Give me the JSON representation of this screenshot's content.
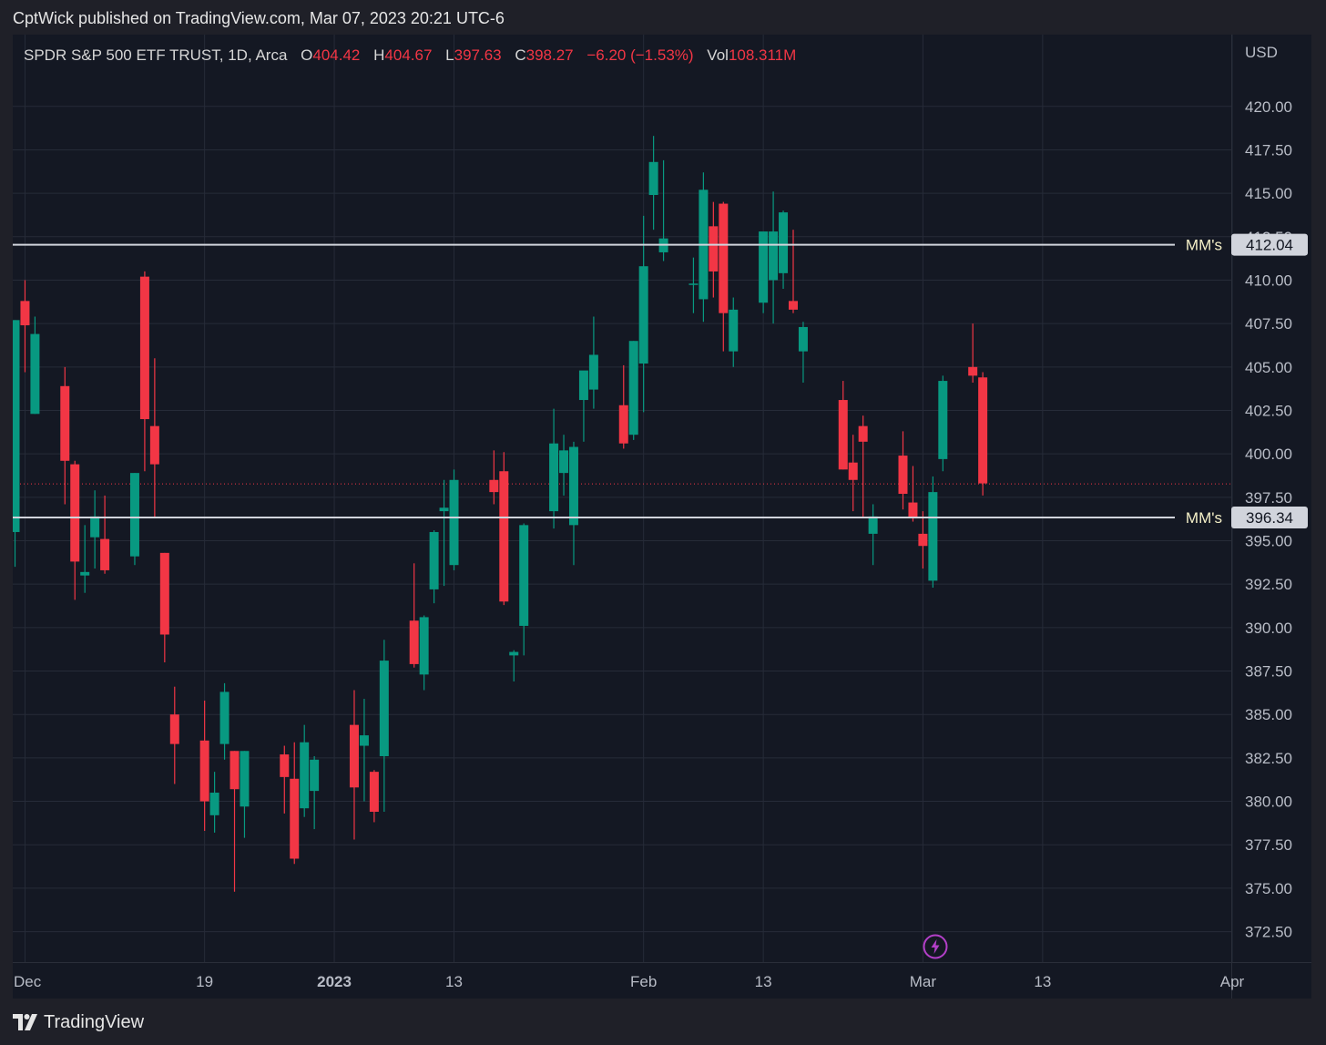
{
  "header": {
    "publisher_text": "CptWick published on TradingView.com, Mar 07, 2023 20:21 UTC-6"
  },
  "legend": {
    "symbol": "SPDR S&P 500 ETF TRUST, 1D, Arca",
    "open_label": "O",
    "open": "404.42",
    "high_label": "H",
    "high": "404.67",
    "low_label": "L",
    "low": "397.63",
    "close_label": "C",
    "close": "398.27",
    "change": "−6.20 (−1.53%)",
    "vol_label": "Vol",
    "vol": "108.311M"
  },
  "footer": {
    "brand": "TradingView"
  },
  "colors": {
    "up": "#089981",
    "down": "#f23645",
    "grid": "#262b38",
    "axis_text": "#b8bcc6",
    "level_line": "#d1d4dc",
    "price_line": "#f23645"
  },
  "chart_data": {
    "type": "candlestick",
    "currency": "USD",
    "ylim": [
      370.8,
      422.4
    ],
    "y_ticks": [
      420.0,
      417.5,
      415.0,
      412.5,
      410.0,
      407.5,
      405.0,
      402.5,
      400.0,
      397.5,
      395.0,
      392.5,
      390.0,
      387.5,
      385.0,
      382.5,
      380.0,
      377.5,
      375.0,
      372.5
    ],
    "x_labels": [
      {
        "label": "Dec",
        "bold": false
      },
      {
        "label": "19",
        "bold": false
      },
      {
        "label": "2023",
        "bold": true
      },
      {
        "label": "13",
        "bold": false
      },
      {
        "label": "Feb",
        "bold": false
      },
      {
        "label": "13",
        "bold": false
      },
      {
        "label": "Mar",
        "bold": false
      },
      {
        "label": "13",
        "bold": false
      },
      {
        "label": "Apr",
        "bold": false
      }
    ],
    "candles": [
      {
        "d": "2022-11-30",
        "o": 395.5,
        "h": 407.7,
        "l": 393.5,
        "c": 407.7
      },
      {
        "d": "2022-12-01",
        "o": 408.8,
        "h": 410.0,
        "l": 404.7,
        "c": 407.4
      },
      {
        "d": "2022-12-02",
        "o": 402.3,
        "h": 407.9,
        "l": 402.3,
        "c": 406.9
      },
      {
        "d": "2022-12-05",
        "o": 403.9,
        "h": 405.0,
        "l": 397.1,
        "c": 399.6
      },
      {
        "d": "2022-12-06",
        "o": 399.4,
        "h": 399.6,
        "l": 391.6,
        "c": 393.8
      },
      {
        "d": "2022-12-07",
        "o": 393.0,
        "h": 395.9,
        "l": 392.0,
        "c": 393.2
      },
      {
        "d": "2022-12-08",
        "o": 395.2,
        "h": 397.9,
        "l": 393.4,
        "c": 396.4
      },
      {
        "d": "2022-12-09",
        "o": 395.1,
        "h": 397.6,
        "l": 393.1,
        "c": 393.3
      },
      {
        "d": "2022-12-12",
        "o": 394.1,
        "h": 398.9,
        "l": 393.6,
        "c": 398.9
      },
      {
        "d": "2022-12-13",
        "o": 410.2,
        "h": 410.5,
        "l": 399.0,
        "c": 402.0
      },
      {
        "d": "2022-12-14",
        "o": 401.6,
        "h": 405.5,
        "l": 396.3,
        "c": 399.4
      },
      {
        "d": "2022-12-15",
        "o": 394.3,
        "h": 394.3,
        "l": 388.0,
        "c": 389.6
      },
      {
        "d": "2022-12-16",
        "o": 385.0,
        "h": 386.6,
        "l": 381.0,
        "c": 383.3
      },
      {
        "d": "2022-12-19",
        "o": 383.5,
        "h": 385.8,
        "l": 378.3,
        "c": 380.0
      },
      {
        "d": "2022-12-20",
        "o": 379.2,
        "h": 381.7,
        "l": 378.2,
        "c": 380.5
      },
      {
        "d": "2022-12-21",
        "o": 383.3,
        "h": 386.8,
        "l": 382.4,
        "c": 386.3
      },
      {
        "d": "2022-12-22",
        "o": 382.9,
        "h": 382.9,
        "l": 374.8,
        "c": 380.7
      },
      {
        "d": "2022-12-23",
        "o": 379.7,
        "h": 382.9,
        "l": 377.9,
        "c": 382.9
      },
      {
        "d": "2022-12-27",
        "o": 382.7,
        "h": 383.2,
        "l": 379.3,
        "c": 381.4
      },
      {
        "d": "2022-12-28",
        "o": 381.3,
        "h": 383.4,
        "l": 376.4,
        "c": 376.7
      },
      {
        "d": "2022-12-29",
        "o": 379.6,
        "h": 384.4,
        "l": 379.1,
        "c": 383.4
      },
      {
        "d": "2022-12-30",
        "o": 380.6,
        "h": 382.6,
        "l": 378.4,
        "c": 382.4
      },
      {
        "d": "2023-01-03",
        "o": 384.4,
        "h": 386.4,
        "l": 377.8,
        "c": 380.8
      },
      {
        "d": "2023-01-04",
        "o": 383.2,
        "h": 385.9,
        "l": 380.0,
        "c": 383.8
      },
      {
        "d": "2023-01-05",
        "o": 381.7,
        "h": 381.8,
        "l": 378.8,
        "c": 379.4
      },
      {
        "d": "2023-01-06",
        "o": 382.6,
        "h": 389.3,
        "l": 379.4,
        "c": 388.1
      },
      {
        "d": "2023-01-09",
        "o": 390.4,
        "h": 393.7,
        "l": 387.7,
        "c": 387.9
      },
      {
        "d": "2023-01-10",
        "o": 387.3,
        "h": 390.7,
        "l": 386.4,
        "c": 390.6
      },
      {
        "d": "2023-01-11",
        "o": 392.2,
        "h": 395.6,
        "l": 391.4,
        "c": 395.5
      },
      {
        "d": "2023-01-12",
        "o": 396.7,
        "h": 398.5,
        "l": 392.4,
        "c": 396.9
      },
      {
        "d": "2023-01-13",
        "o": 393.6,
        "h": 399.1,
        "l": 393.3,
        "c": 398.5
      },
      {
        "d": "2023-01-17",
        "o": 398.5,
        "h": 400.2,
        "l": 397.1,
        "c": 397.8
      },
      {
        "d": "2023-01-18",
        "o": 399.0,
        "h": 400.1,
        "l": 391.3,
        "c": 391.5
      },
      {
        "d": "2023-01-19",
        "o": 388.4,
        "h": 388.7,
        "l": 386.9,
        "c": 388.6
      },
      {
        "d": "2023-01-20",
        "o": 390.1,
        "h": 396.0,
        "l": 388.4,
        "c": 395.9
      },
      {
        "d": "2023-01-23",
        "o": 396.7,
        "h": 402.6,
        "l": 395.7,
        "c": 400.6
      },
      {
        "d": "2023-01-24",
        "o": 398.9,
        "h": 401.1,
        "l": 397.6,
        "c": 400.2
      },
      {
        "d": "2023-01-25",
        "o": 395.9,
        "h": 400.7,
        "l": 393.6,
        "c": 400.4
      },
      {
        "d": "2023-01-26",
        "o": 403.1,
        "h": 404.6,
        "l": 400.7,
        "c": 404.8
      },
      {
        "d": "2023-01-27",
        "o": 403.7,
        "h": 407.9,
        "l": 402.6,
        "c": 405.7
      },
      {
        "d": "2023-01-30",
        "o": 402.8,
        "h": 405.1,
        "l": 400.3,
        "c": 400.6
      },
      {
        "d": "2023-01-31",
        "o": 401.1,
        "h": 406.5,
        "l": 400.8,
        "c": 406.5
      },
      {
        "d": "2023-02-01",
        "o": 405.2,
        "h": 413.7,
        "l": 402.4,
        "c": 410.8
      },
      {
        "d": "2023-02-02",
        "o": 414.9,
        "h": 418.3,
        "l": 412.9,
        "c": 416.8
      },
      {
        "d": "2023-02-03",
        "o": 411.6,
        "h": 416.9,
        "l": 411.1,
        "c": 412.4
      },
      {
        "d": "2023-02-06",
        "o": 409.8,
        "h": 411.3,
        "l": 408.1,
        "c": 409.8
      },
      {
        "d": "2023-02-07",
        "o": 408.9,
        "h": 416.2,
        "l": 407.6,
        "c": 415.2
      },
      {
        "d": "2023-02-08",
        "o": 413.1,
        "h": 414.5,
        "l": 409.0,
        "c": 410.5
      },
      {
        "d": "2023-02-09",
        "o": 414.4,
        "h": 414.5,
        "l": 405.9,
        "c": 408.1
      },
      {
        "d": "2023-02-10",
        "o": 405.9,
        "h": 409.0,
        "l": 405.0,
        "c": 408.3
      },
      {
        "d": "2023-02-13",
        "o": 408.7,
        "h": 412.6,
        "l": 408.1,
        "c": 412.8
      },
      {
        "d": "2023-02-14",
        "o": 410.0,
        "h": 415.1,
        "l": 407.5,
        "c": 412.8
      },
      {
        "d": "2023-02-15",
        "o": 410.4,
        "h": 414.0,
        "l": 409.5,
        "c": 413.9
      },
      {
        "d": "2023-02-16",
        "o": 408.8,
        "h": 412.9,
        "l": 408.1,
        "c": 408.3
      },
      {
        "d": "2023-02-17",
        "o": 405.9,
        "h": 407.6,
        "l": 404.1,
        "c": 407.3
      },
      {
        "d": "2023-02-21",
        "o": 403.1,
        "h": 404.2,
        "l": 399.1,
        "c": 399.1
      },
      {
        "d": "2023-02-22",
        "o": 399.5,
        "h": 401.1,
        "l": 396.7,
        "c": 398.5
      },
      {
        "d": "2023-02-23",
        "o": 401.6,
        "h": 402.2,
        "l": 396.3,
        "c": 400.7
      },
      {
        "d": "2023-02-24",
        "o": 395.4,
        "h": 397.1,
        "l": 393.6,
        "c": 396.4
      },
      {
        "d": "2023-02-27",
        "o": 399.9,
        "h": 401.3,
        "l": 396.8,
        "c": 397.7
      },
      {
        "d": "2023-02-28",
        "o": 397.2,
        "h": 399.3,
        "l": 396.1,
        "c": 396.3
      },
      {
        "d": "2023-03-01",
        "o": 395.4,
        "h": 396.7,
        "l": 393.4,
        "c": 394.7
      },
      {
        "d": "2023-03-02",
        "o": 392.7,
        "h": 398.7,
        "l": 392.3,
        "c": 397.8
      },
      {
        "d": "2023-03-03",
        "o": 399.7,
        "h": 404.5,
        "l": 399.0,
        "c": 404.2
      },
      {
        "d": "2023-03-06",
        "o": 405.0,
        "h": 407.5,
        "l": 404.1,
        "c": 404.5
      },
      {
        "d": "2023-03-07",
        "o": 404.4,
        "h": 404.7,
        "l": 397.6,
        "c": 398.3
      }
    ],
    "levels": [
      {
        "label": "MM's",
        "value": 412.04,
        "value_text": "412.04"
      },
      {
        "label": "MM's",
        "value": 396.34,
        "value_text": "396.34"
      }
    ],
    "last_price": 398.27
  }
}
